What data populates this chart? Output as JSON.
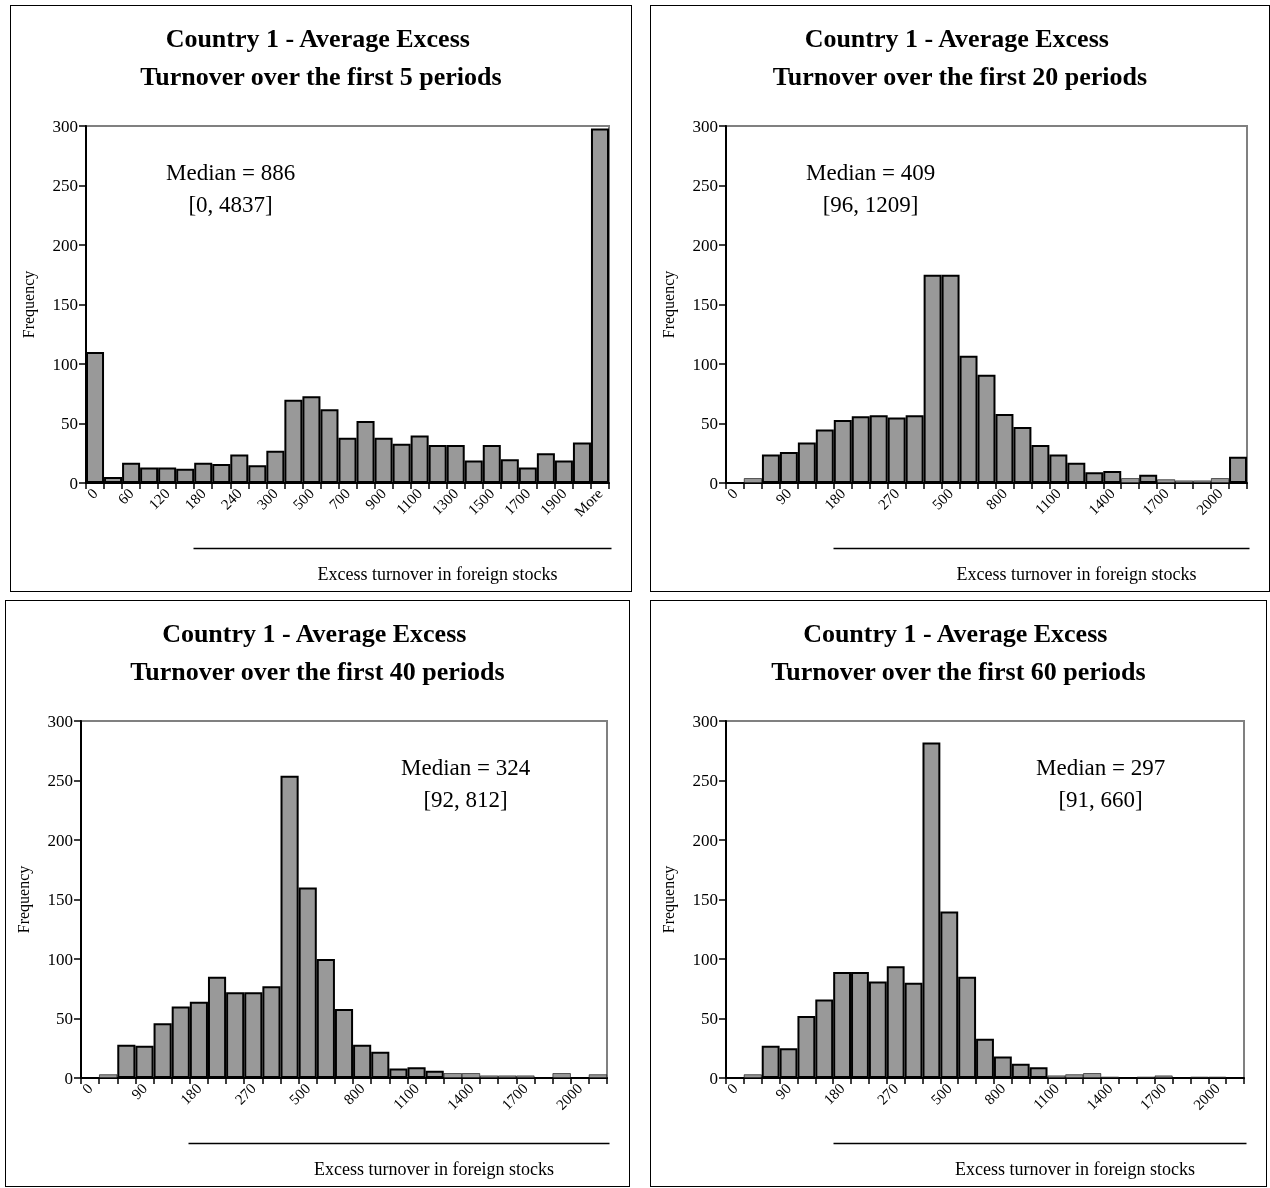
{
  "chart_data": [
    {
      "type": "bar",
      "title": "Country 1 - Average Excess Turnover over the first 5 periods",
      "xlabel": "Excess turnover in foreign stocks",
      "ylabel": "Frequency",
      "annotations": [
        "Median = 886\n[0, 4837]"
      ],
      "color": "#999999",
      "ylim": [
        0,
        300
      ],
      "yticks": [
        0,
        50,
        100,
        150,
        200,
        250,
        300
      ],
      "categories": [
        "0",
        null,
        "60",
        null,
        "120",
        null,
        "180",
        null,
        "240",
        null,
        "300",
        null,
        "500",
        null,
        "700",
        null,
        "900",
        null,
        "1100",
        null,
        "1300",
        null,
        "1500",
        null,
        "1700",
        null,
        "1900",
        null,
        "More"
      ],
      "values": [
        110,
        5,
        17,
        13,
        13,
        12,
        17,
        16,
        24,
        15,
        27,
        70,
        73,
        62,
        38,
        52,
        38,
        33,
        40,
        32,
        32,
        19,
        32,
        20,
        13,
        25,
        19,
        34,
        298
      ]
    },
    {
      "type": "bar",
      "title": "Country 1 - Average Excess Turnover over the first 20 periods",
      "xlabel": "Excess turnover in foreign stocks",
      "ylabel": "Frequency",
      "annotations": [
        "Median = 409\n[96, 1209]"
      ],
      "color": "#999999",
      "ylim": [
        0,
        300
      ],
      "yticks": [
        0,
        50,
        100,
        150,
        200,
        250,
        300
      ],
      "categories": [
        "0",
        null,
        null,
        "90",
        null,
        null,
        "180",
        null,
        null,
        "270",
        null,
        null,
        "500",
        null,
        null,
        "800",
        null,
        null,
        "1100",
        null,
        null,
        "1400",
        null,
        null,
        "1700",
        null,
        null,
        "2000",
        null
      ],
      "values": [
        0,
        4,
        24,
        26,
        34,
        45,
        53,
        56,
        57,
        55,
        57,
        175,
        175,
        107,
        91,
        58,
        47,
        32,
        24,
        17,
        9,
        10,
        4,
        7,
        3,
        2,
        2,
        4,
        22
      ]
    },
    {
      "type": "bar",
      "title": "Country 1 - Average Excess Turnover over the first 40 periods",
      "xlabel": "Excess turnover in foreign stocks",
      "ylabel": "Frequency",
      "annotations": [
        "Median = 324\n[92, 812]"
      ],
      "color": "#999999",
      "ylim": [
        0,
        300
      ],
      "yticks": [
        0,
        50,
        100,
        150,
        200,
        250,
        300
      ],
      "categories": [
        "0",
        null,
        null,
        "90",
        null,
        null,
        "180",
        null,
        null,
        "270",
        null,
        null,
        "500",
        null,
        null,
        "800",
        null,
        null,
        "1100",
        null,
        null,
        "1400",
        null,
        null,
        "1700",
        null,
        null,
        "2000",
        null
      ],
      "values": [
        0,
        3,
        28,
        27,
        46,
        60,
        64,
        85,
        72,
        72,
        77,
        254,
        160,
        100,
        58,
        28,
        22,
        8,
        9,
        6,
        4,
        4,
        2,
        2,
        2,
        0,
        4,
        0,
        3
      ]
    },
    {
      "type": "bar",
      "title": "Country 1 - Average Excess Turnover over the first 60 periods",
      "xlabel": "Excess turnover in foreign stocks",
      "ylabel": "Frequency",
      "annotations": [
        "Median = 297\n[91, 660]"
      ],
      "color": "#999999",
      "ylim": [
        0,
        300
      ],
      "yticks": [
        0,
        50,
        100,
        150,
        200,
        250,
        300
      ],
      "categories": [
        "0",
        null,
        null,
        "90",
        null,
        null,
        "180",
        null,
        null,
        "270",
        null,
        null,
        "500",
        null,
        null,
        "800",
        null,
        null,
        "1100",
        null,
        null,
        "1400",
        null,
        null,
        "1700",
        null,
        null,
        "2000",
        null
      ],
      "values": [
        0,
        3,
        27,
        25,
        52,
        66,
        89,
        89,
        81,
        94,
        80,
        282,
        140,
        85,
        33,
        18,
        12,
        9,
        2,
        3,
        4,
        1,
        0,
        1,
        2,
        0,
        1,
        1,
        0
      ]
    }
  ]
}
